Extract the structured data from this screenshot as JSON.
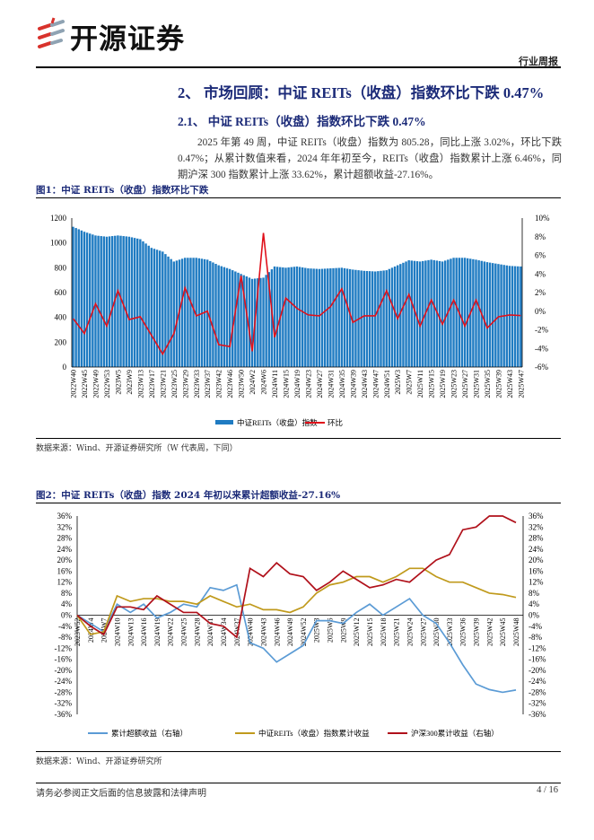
{
  "header": {
    "company": "开源证券",
    "report_type": "行业周报"
  },
  "section": {
    "h2": "2、 市场回顾：中证 REITs（收盘）指数环比下跌 0.47%",
    "h21": "2.1、 中证 REITs（收盘）指数环比下跌 0.47%",
    "paragraph": "2025 年第 49 周，中证 REITs（收盘）指数为 805.28，同比上涨 3.02%，环比下跌 0.47%；从累计数值来看，2024 年年初至今，REITs（收盘）指数累计上涨 6.46%，同期沪深 300 指数累计上涨 33.62%，累计超额收益-27.16%。"
  },
  "figure1": {
    "title": "图1：中证 REITs（收盘）指数环比下跌",
    "source": "数据来源：Wind、开源证券研究所（W 代表周，下同）"
  },
  "figure2": {
    "title": "图2：中证 REITs（收盘）指数 2024 年初以来累计超额收益-27.16%",
    "source": "数据来源：Wind、开源证券研究所"
  },
  "footer": {
    "disclaimer": "请务必参阅正文后面的信息披露和法律声明",
    "page": "4 / 16"
  },
  "colors": {
    "navy": "#1b2a78",
    "bar": "#1f7bc2",
    "red": "#e0101a",
    "blue": "#5b9bd5",
    "gold": "#c09a1c",
    "darkred": "#b0101a"
  },
  "chart_data": [
    {
      "type": "bar+line",
      "title": "图1：中证 REITs（收盘）指数环比下跌",
      "categories": [
        "2022W40",
        "2022W45",
        "2022W49",
        "2022W53",
        "2023W5",
        "2023W9",
        "2023W13",
        "2023W17",
        "2023W21",
        "2023W25",
        "2023W29",
        "2023W33",
        "2023W37",
        "2023W42",
        "2023W46",
        "2023W50",
        "2024W2",
        "2024W6",
        "2024W11",
        "2024W15",
        "2024W19",
        "2024W23",
        "2024W27",
        "2024W31",
        "2024W35",
        "2024W39",
        "2024W43",
        "2024W47",
        "2024W51",
        "2025W3",
        "2025W7",
        "2025W11",
        "2025W15",
        "2025W19",
        "2025W23",
        "2025W27",
        "2025W31",
        "2025W35",
        "2025W39",
        "2025W43",
        "2025W47"
      ],
      "series": [
        {
          "name": "中证REITs（收盘）指数",
          "axis": "left",
          "kind": "bar",
          "values": [
            1130,
            1090,
            1060,
            1050,
            1060,
            1050,
            1030,
            960,
            930,
            850,
            880,
            880,
            865,
            820,
            790,
            750,
            710,
            720,
            810,
            800,
            810,
            795,
            790,
            795,
            800,
            785,
            775,
            770,
            780,
            820,
            860,
            850,
            865,
            850,
            880,
            880,
            865,
            845,
            830,
            815,
            810
          ]
        },
        {
          "name": "环比",
          "axis": "right",
          "kind": "line",
          "values": [
            -0.8,
            -2.4,
            0.8,
            -1.6,
            2.2,
            -0.9,
            -0.6,
            -2.6,
            -4.6,
            -2.4,
            2.5,
            -0.5,
            0.0,
            -3.6,
            -3.8,
            3.8,
            -4.3,
            8.4,
            -2.8,
            1.4,
            0.3,
            -0.4,
            -0.5,
            0.5,
            2.4,
            -1.2,
            -0.5,
            -0.5,
            2.2,
            -0.8,
            1.8,
            -1.6,
            1.2,
            -1.4,
            1.2,
            -1.6,
            1.2,
            -1.8,
            -0.6,
            -0.4,
            -0.47
          ]
        }
      ],
      "ylim_left": [
        0,
        1200
      ],
      "yticks_left": [
        "0",
        "200",
        "400",
        "600",
        "800",
        "1000",
        "1200"
      ],
      "ylim_right": [
        -6,
        10
      ],
      "yticks_right": [
        "-6%",
        "-4%",
        "-2%",
        "0%",
        "2%",
        "4%",
        "6%",
        "8%",
        "10%"
      ],
      "legend": [
        "中证REITs（收盘）指数",
        "环比"
      ],
      "legend_position": "bottom"
    },
    {
      "type": "line",
      "title": "图2：中证 REITs（收盘）指数 2024 年初以来累计超额收益-27.16%",
      "categories": [
        "2023W52",
        "2024W4",
        "2024W7",
        "2024W10",
        "2024W13",
        "2024W16",
        "2024W19",
        "2024W22",
        "2024W25",
        "2024W28",
        "2024W31",
        "2024W34",
        "2024W37",
        "2024W40",
        "2024W43",
        "2024W46",
        "2024W49",
        "2024W52",
        "2025W3",
        "2025W6",
        "2025W9",
        "2025W12",
        "2025W15",
        "2025W18",
        "2025W21",
        "2025W24",
        "2025W27",
        "2025W30",
        "2025W33",
        "2025W36",
        "2025W39",
        "2025W42",
        "2025W45",
        "2025W48"
      ],
      "series": [
        {
          "name": "累计超额收益（右轴）",
          "color": "#5b9bd5",
          "values": [
            0,
            -3,
            -6,
            4,
            1,
            4,
            -1,
            1,
            4,
            3,
            10,
            9,
            11,
            -10,
            -12,
            -17,
            -14,
            -11,
            -2,
            -2,
            -3,
            1,
            4,
            0,
            3,
            6,
            0,
            -3,
            -10,
            -18,
            -25,
            -27,
            -28,
            -27.16
          ]
        },
        {
          "name": "中证REITs（收盘）指数累计收益",
          "color": "#c09a1c",
          "values": [
            0,
            -7,
            -6,
            7,
            5,
            6,
            6,
            5,
            5,
            4,
            7,
            5,
            3,
            4,
            2,
            2,
            1,
            3,
            8,
            11,
            12,
            14,
            14,
            12,
            14,
            17,
            17,
            14,
            12,
            12,
            10,
            8,
            7.5,
            6.46
          ]
        },
        {
          "name": "沪深300累计收益（右轴）",
          "color": "#b0101a",
          "values": [
            0,
            -4,
            -7,
            3,
            3,
            2,
            7,
            4,
            1,
            1,
            -3,
            -4,
            -8,
            17,
            14,
            19,
            15,
            14,
            9,
            12,
            16,
            13,
            10,
            11,
            13,
            12,
            16,
            20,
            22,
            31,
            32,
            36,
            36,
            33.62
          ]
        }
      ],
      "ylim": [
        -36,
        36
      ],
      "yticks": [
        "-36%",
        "-32%",
        "-28%",
        "-24%",
        "-20%",
        "-16%",
        "-12%",
        "-8%",
        "-4%",
        "0%",
        "4%",
        "8%",
        "12%",
        "16%",
        "20%",
        "24%",
        "28%",
        "32%",
        "36%"
      ],
      "legend_position": "bottom"
    }
  ]
}
